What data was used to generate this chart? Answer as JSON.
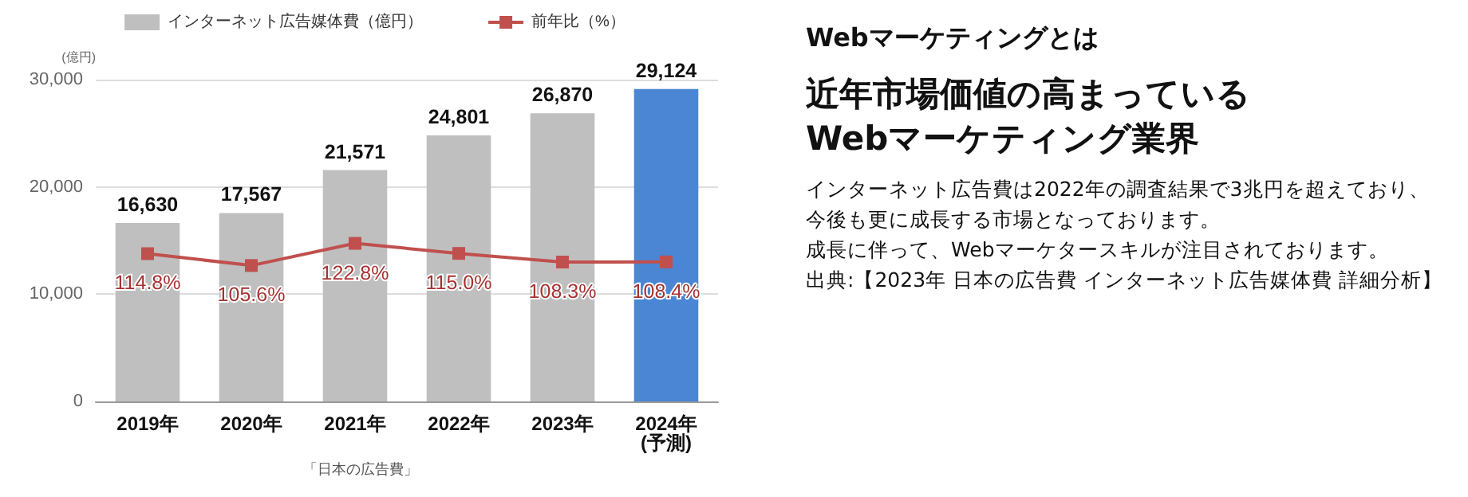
{
  "chart_data": {
    "type": "bar",
    "title": "近年市場価値の高まっているWebマーケティング業界",
    "subtitle": "Webマーケティングとは",
    "ylabel": "(億円)",
    "categories": [
      "2019年",
      "2020年",
      "2021年",
      "2022年",
      "2023年",
      "2024年\n(予測)"
    ],
    "series": [
      {
        "name": "インターネット広告媒体費（億円）",
        "colors": [
          "#bfbfbf",
          "#bfbfbf",
          "#bfbfbf",
          "#bfbfbf",
          "#bfbfbf",
          "#4a86d4"
        ],
        "color": "#bfbfbf",
        "values": [
          16630,
          17567,
          21571,
          24801,
          26870,
          29124
        ],
        "value_labels": [
          "16,630",
          "17,567",
          "21,571",
          "24,801",
          "26,870",
          "29,124"
        ]
      },
      {
        "name": "前年比（%）",
        "type": "line",
        "axis": "y2",
        "color": "#c0504d",
        "values": [
          114.8,
          105.6,
          122.8,
          115.0,
          108.3,
          108.4
        ],
        "value_labels": [
          "114.8%",
          "105.6%",
          "122.8%",
          "115.0%",
          "108.3%",
          "108.4%"
        ]
      }
    ],
    "ylim": [
      0,
      30000
    ],
    "yticks": [
      {
        "value": 0,
        "label": "0"
      },
      {
        "value": 10000,
        "label": "10,000"
      },
      {
        "value": 20000,
        "label": "20,000"
      },
      {
        "value": 30000,
        "label": "30,000"
      }
    ],
    "y2lim": [
      0,
      250
    ],
    "grid": "y",
    "legend": "top",
    "marker": "square",
    "line_style": "solid",
    "annotations": [
      "「日本の広告費」",
      "インターネット広告費は2022年の調査結果で3兆円を超えており、",
      "今後も更に成長する市場となっております。",
      "成長に伴って、Webマーケタースキルが注目されております。",
      "出典:【2023年 日本の広告費 インターネット広告媒体費 詳細分析】"
    ]
  }
}
